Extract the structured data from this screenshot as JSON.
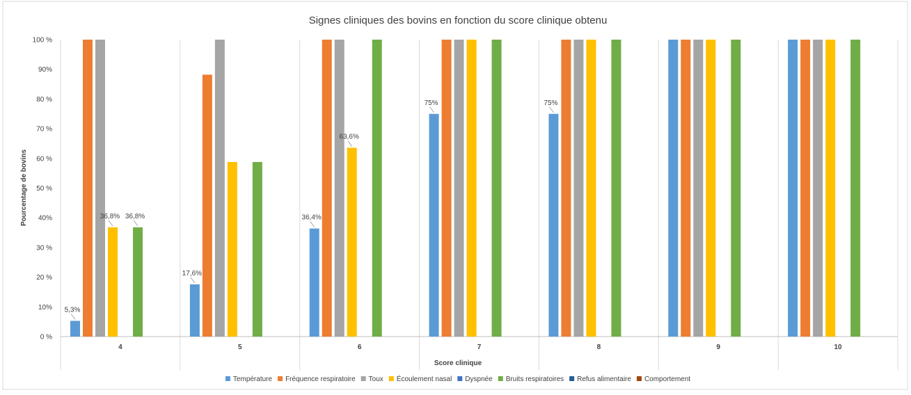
{
  "chart_data": {
    "type": "bar",
    "title": "Signes cliniques des bovins en fonction du score clinique obtenu",
    "xlabel": "Score clinique",
    "ylabel": "Pourcentage de bovins",
    "ylim": [
      0,
      100
    ],
    "yticks": [
      "0 %",
      "10%",
      "20 %",
      "30 %",
      "40%",
      "50 %",
      "60 %",
      "70 %",
      "80 %",
      "90%",
      "100 %"
    ],
    "grid": "vertical category separators",
    "legend_position": "bottom",
    "categories": [
      "4",
      "5",
      "6",
      "7",
      "8",
      "9",
      "10"
    ],
    "series": [
      {
        "name": "Température",
        "color": "#5B9BD5",
        "values": [
          5.3,
          17.6,
          36.4,
          75,
          75,
          100,
          100
        ],
        "labels": [
          "5,3%",
          "17,6%",
          "36,4%",
          "75%",
          "75%",
          null,
          null
        ]
      },
      {
        "name": "Fréquence respiratoire",
        "color": "#ED7D31",
        "values": [
          100,
          88.2,
          100,
          100,
          100,
          100,
          100
        ],
        "labels": [
          null,
          null,
          null,
          null,
          null,
          null,
          null
        ]
      },
      {
        "name": "Toux",
        "color": "#A5A5A5",
        "values": [
          100,
          100,
          100,
          100,
          100,
          100,
          100
        ],
        "labels": [
          null,
          null,
          null,
          null,
          null,
          null,
          null
        ]
      },
      {
        "name": "Écoulement nasal",
        "color": "#FFC000",
        "values": [
          36.8,
          58.8,
          63.6,
          100,
          100,
          100,
          100
        ],
        "labels": [
          "36,8%",
          null,
          "63,6%",
          null,
          null,
          null,
          null
        ]
      },
      {
        "name": "Dyspnée",
        "color": "#4472C4",
        "values": [
          0,
          0,
          0,
          0,
          0,
          0,
          0
        ],
        "labels": [
          null,
          null,
          null,
          null,
          null,
          null,
          null
        ]
      },
      {
        "name": "Bruits respiratoires",
        "color": "#70AD47",
        "values": [
          36.8,
          58.8,
          100,
          100,
          100,
          100,
          100
        ],
        "labels": [
          "36,8%",
          null,
          null,
          null,
          null,
          null,
          null
        ]
      },
      {
        "name": "Refus alimentaire",
        "color": "#255E91",
        "values": [
          0,
          0,
          0,
          0,
          0,
          0,
          0
        ],
        "labels": [
          null,
          null,
          null,
          null,
          null,
          null,
          null
        ]
      },
      {
        "name": "Comportement",
        "color": "#9E480E",
        "values": [
          0,
          0,
          0,
          0,
          0,
          0,
          0
        ],
        "labels": [
          null,
          null,
          null,
          null,
          null,
          null,
          null
        ]
      }
    ]
  }
}
